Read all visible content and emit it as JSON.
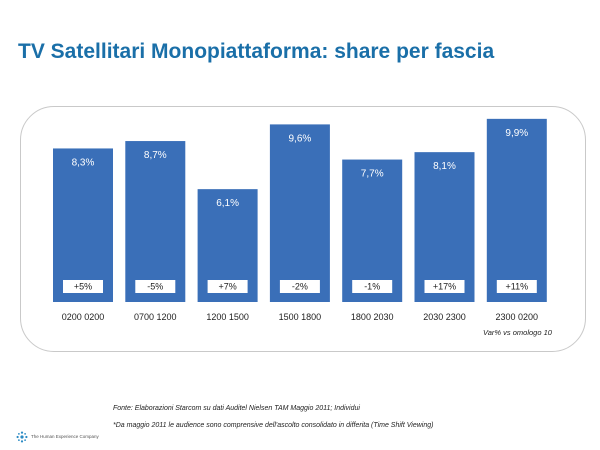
{
  "title": "TV Satellitari Monopiattaforma: share per fascia",
  "chart_data": {
    "type": "bar",
    "categories": [
      "0200 0200",
      "0700 1200",
      "1200 1500",
      "1500 1800",
      "1800 2030",
      "2030 2300",
      "2300 0200"
    ],
    "values": [
      8.3,
      8.7,
      6.1,
      9.6,
      7.7,
      8.1,
      9.9
    ],
    "value_labels": [
      "8,3%",
      "8,7%",
      "6,1%",
      "9,6%",
      "7,7%",
      "8,1%",
      "9,9%"
    ],
    "variations": [
      "+5%",
      "-5%",
      "+7%",
      "-2%",
      "-1%",
      "+17%",
      "+11%"
    ],
    "ylim": [
      0,
      10
    ],
    "grid": false,
    "bar_color": "#3a6fb8",
    "note": "Var% vs omologo 10"
  },
  "footer": {
    "source": "Fonte: Elaborazioni Starcom su dati Auditel Nielsen TAM Maggio 2011; Individui",
    "footnote": "*Da maggio 2011 le audience sono comprensive dell'ascolto consolidato in differita (Time Shift Viewing)",
    "company": "The Human Experience Company"
  }
}
